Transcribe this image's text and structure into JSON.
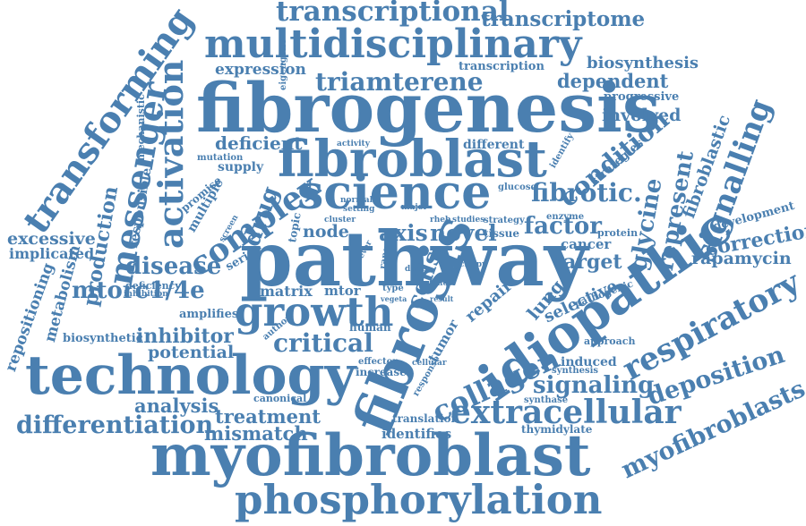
{
  "colors": {
    "word": "#4a7fb0",
    "background": "#ffffff"
  },
  "words": [
    "transcriptional",
    "transcriptome",
    "multidisciplinary",
    "expression",
    "eigengene",
    "transcription",
    "biosynthesis",
    "dependent",
    "fibrogenesis",
    "triamterene",
    "progressive",
    "involved",
    "transforming",
    "mechanistic",
    "activation",
    "deficient",
    "mutation",
    "activity",
    "different",
    "identify",
    "condition",
    "fibroblastic",
    "fibroblast",
    "supply",
    "strategies",
    "glucose",
    "signalling",
    "messenger",
    "responsible",
    "science",
    "promise",
    "normal",
    "setting",
    "major",
    "fibrotic.",
    "represent",
    "multiple",
    "enzyme",
    "development",
    "production",
    "complex",
    "drug",
    "screen",
    "cluster",
    "rheb",
    "studies",
    "strategy",
    "factor",
    "excessive",
    "node",
    "tissue",
    "novel",
    "axis",
    "topic",
    "protein",
    "correction",
    "implicated",
    "disease",
    "serine",
    "never",
    "range",
    "crispr",
    "cancer",
    "glycine",
    "rapamycin",
    "pathway",
    "target",
    "repositioning",
    "mtorc1/4e",
    "deficiency",
    "inhibition",
    "data",
    "effect",
    "metabolism",
    "matrix",
    "mtor",
    "type",
    "vegeta",
    "repair",
    "lung",
    "pathogenic",
    "selective",
    "growth",
    "cells",
    "amplifies",
    "fibrosis",
    "idiopathic",
    "biosynthetic",
    "author",
    "human",
    "tumor",
    "inhibitor",
    "approach",
    "respiratory",
    "critical",
    "potential",
    "effector",
    "increase",
    "cellular",
    "induced",
    "synthesis",
    "technology",
    "collagen",
    "signaling",
    "deposition",
    "response",
    "canonical",
    "synthase",
    "myofibroblasts",
    "analysis",
    "extracellular",
    "treatment",
    "translation",
    "differentiation",
    "mismatch",
    "identifies",
    "thymidylate",
    "myofibroblast",
    "phosphorylation",
    "result"
  ]
}
